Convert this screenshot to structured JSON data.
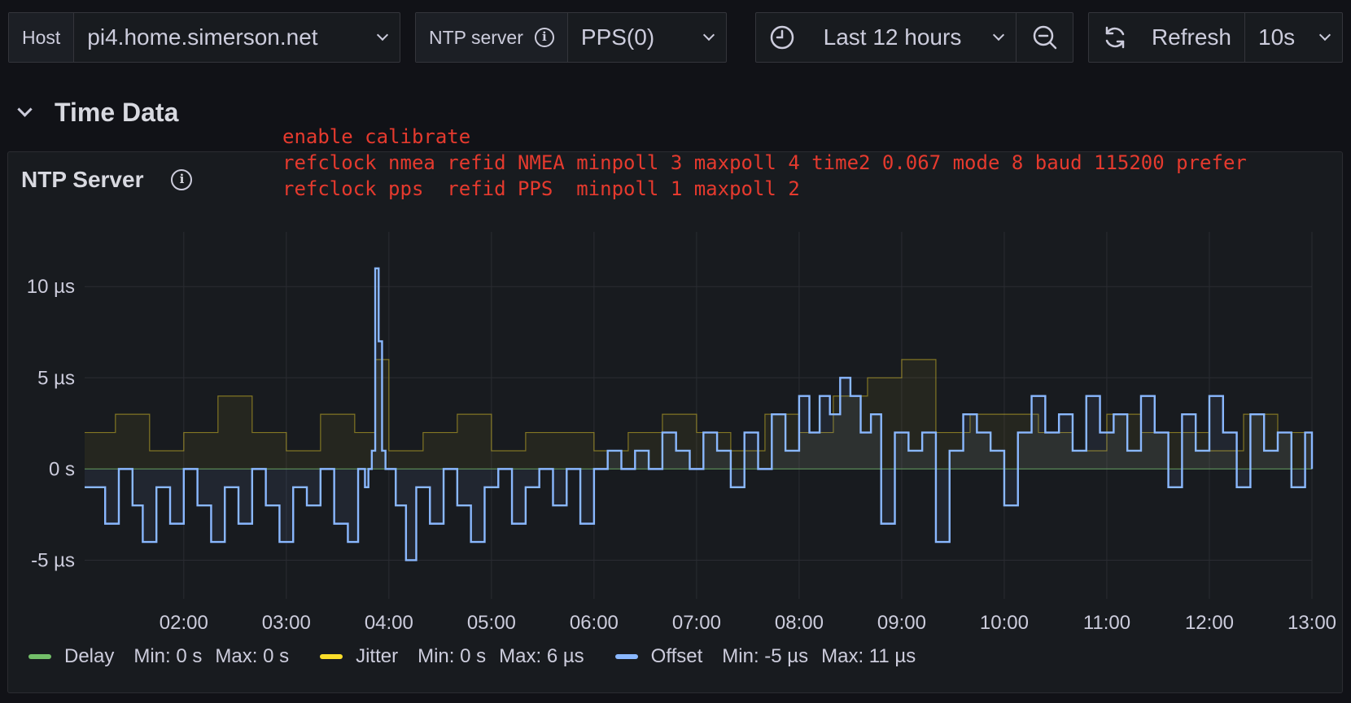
{
  "toolbar": {
    "host_label": "Host",
    "host_value": "pi4.home.simerson.net",
    "ntp_label": "NTP server",
    "ntp_value": "PPS(0)",
    "time_range": "Last 12 hours",
    "refresh_label": "Refresh",
    "refresh_interval": "10s"
  },
  "row": {
    "title": "Time Data"
  },
  "panel": {
    "title": "NTP Server",
    "config_lines": [
      "enable calibrate",
      "refclock nmea refid NMEA minpoll 3 maxpoll 4 time2 0.067 mode 8 baud 115200 prefer",
      "refclock pps  refid PPS  minpoll 1 maxpoll 2"
    ]
  },
  "colors": {
    "delay": "#73bf69",
    "jitter": "#fade2a",
    "offset": "#8ab8ff",
    "background": "#111217",
    "panel": "#181b1f",
    "annotation": "#e53a2e"
  },
  "legend": [
    {
      "name": "Delay",
      "min": "Min: 0 s",
      "max": "Max: 0 s",
      "color": "#73bf69"
    },
    {
      "name": "Jitter",
      "min": "Min: 0 s",
      "max": "Max: 6 µs",
      "color": "#fade2a"
    },
    {
      "name": "Offset",
      "min": "Min: -5 µs",
      "max": "Max: 11 µs",
      "color": "#8ab8ff"
    }
  ],
  "chart_data": {
    "type": "line",
    "x_range": [
      "01:02",
      "13:00"
    ],
    "ylim": [
      -7.3,
      13.0
    ],
    "y_ticks": [
      {
        "value": 10,
        "label": "10 µs"
      },
      {
        "value": 5,
        "label": "5 µs"
      },
      {
        "value": 0,
        "label": "0 s"
      },
      {
        "value": -5,
        "label": "-5 µs"
      }
    ],
    "x_ticks": [
      "02:00",
      "03:00",
      "04:00",
      "05:00",
      "06:00",
      "07:00",
      "08:00",
      "09:00",
      "10:00",
      "11:00",
      "12:00",
      "13:00"
    ],
    "grid": true,
    "legend_position": "bottom-left",
    "series": [
      {
        "name": "Offset",
        "x": [
          "01:02",
          "01:14",
          "01:22",
          "01:30",
          "01:36",
          "01:44",
          "01:52",
          "02:00",
          "02:08",
          "02:16",
          "02:24",
          "02:32",
          "02:40",
          "02:48",
          "02:56",
          "03:04",
          "03:12",
          "03:20",
          "03:28",
          "03:36",
          "03:42",
          "03:46",
          "03:48",
          "03:50",
          "03:52",
          "03:54",
          "03:56",
          "03:58",
          "04:04",
          "04:10",
          "04:16",
          "04:24",
          "04:32",
          "04:40",
          "04:48",
          "04:56",
          "05:04",
          "05:12",
          "05:20",
          "05:28",
          "05:36",
          "05:44",
          "05:52",
          "06:00",
          "06:08",
          "06:16",
          "06:24",
          "06:32",
          "06:40",
          "06:48",
          "06:56",
          "07:04",
          "07:12",
          "07:20",
          "07:28",
          "07:36",
          "07:44",
          "07:52",
          "08:00",
          "08:06",
          "08:12",
          "08:18",
          "08:24",
          "08:30",
          "08:36",
          "08:42",
          "08:48",
          "08:56",
          "09:04",
          "09:12",
          "09:20",
          "09:28",
          "09:36",
          "09:44",
          "09:52",
          "10:00",
          "10:08",
          "10:16",
          "10:24",
          "10:32",
          "10:40",
          "10:48",
          "10:56",
          "11:04",
          "11:12",
          "11:20",
          "11:28",
          "11:36",
          "11:44",
          "11:52",
          "12:00",
          "12:08",
          "12:16",
          "12:24",
          "12:32",
          "12:40",
          "12:48",
          "12:56",
          "13:00"
        ],
        "values": [
          -1,
          -3,
          0,
          -2,
          -4,
          -1,
          -3,
          0,
          -2,
          -4,
          -1,
          -3,
          0,
          -2,
          -4,
          -1,
          -2,
          0,
          -3,
          -4,
          0,
          -1,
          0,
          1,
          11,
          7,
          1,
          0,
          -2,
          -5,
          -1,
          -3,
          0,
          -2,
          -4,
          -1,
          0,
          -3,
          -1,
          0,
          -2,
          0,
          -3,
          0,
          1,
          0,
          1,
          0,
          2,
          1,
          0,
          2,
          1,
          -1,
          2,
          0,
          3,
          1,
          4,
          2,
          4,
          3,
          5,
          4,
          2,
          3,
          -3,
          2,
          1,
          2,
          -4,
          1,
          3,
          2,
          1,
          -2,
          2,
          4,
          2,
          3,
          1,
          4,
          2,
          3,
          1,
          4,
          2,
          -1,
          3,
          1,
          4,
          2,
          -1,
          3,
          1,
          2,
          -1,
          2,
          0
        ],
        "color": "#8ab8ff"
      },
      {
        "name": "Jitter",
        "x": [
          "01:02",
          "01:20",
          "01:40",
          "02:00",
          "02:20",
          "02:40",
          "03:00",
          "03:20",
          "03:40",
          "03:52",
          "04:00",
          "04:20",
          "04:40",
          "05:00",
          "05:20",
          "05:40",
          "06:00",
          "06:20",
          "06:40",
          "07:00",
          "07:20",
          "07:40",
          "08:00",
          "08:20",
          "08:40",
          "09:00",
          "09:20",
          "09:40",
          "10:00",
          "10:20",
          "10:40",
          "11:00",
          "11:20",
          "11:40",
          "12:00",
          "12:20",
          "12:40",
          "13:00"
        ],
        "values": [
          2,
          3,
          1,
          2,
          4,
          2,
          1,
          3,
          2,
          6,
          1,
          2,
          3,
          1,
          2,
          2,
          1,
          2,
          3,
          2,
          1,
          3,
          2,
          4,
          5,
          6,
          2,
          3,
          3,
          2,
          1,
          3,
          2,
          2,
          1,
          3,
          2,
          2
        ],
        "color": "#fade2a"
      },
      {
        "name": "Delay",
        "x": [
          "01:02",
          "13:00"
        ],
        "values": [
          0,
          0
        ],
        "color": "#73bf69"
      }
    ]
  }
}
